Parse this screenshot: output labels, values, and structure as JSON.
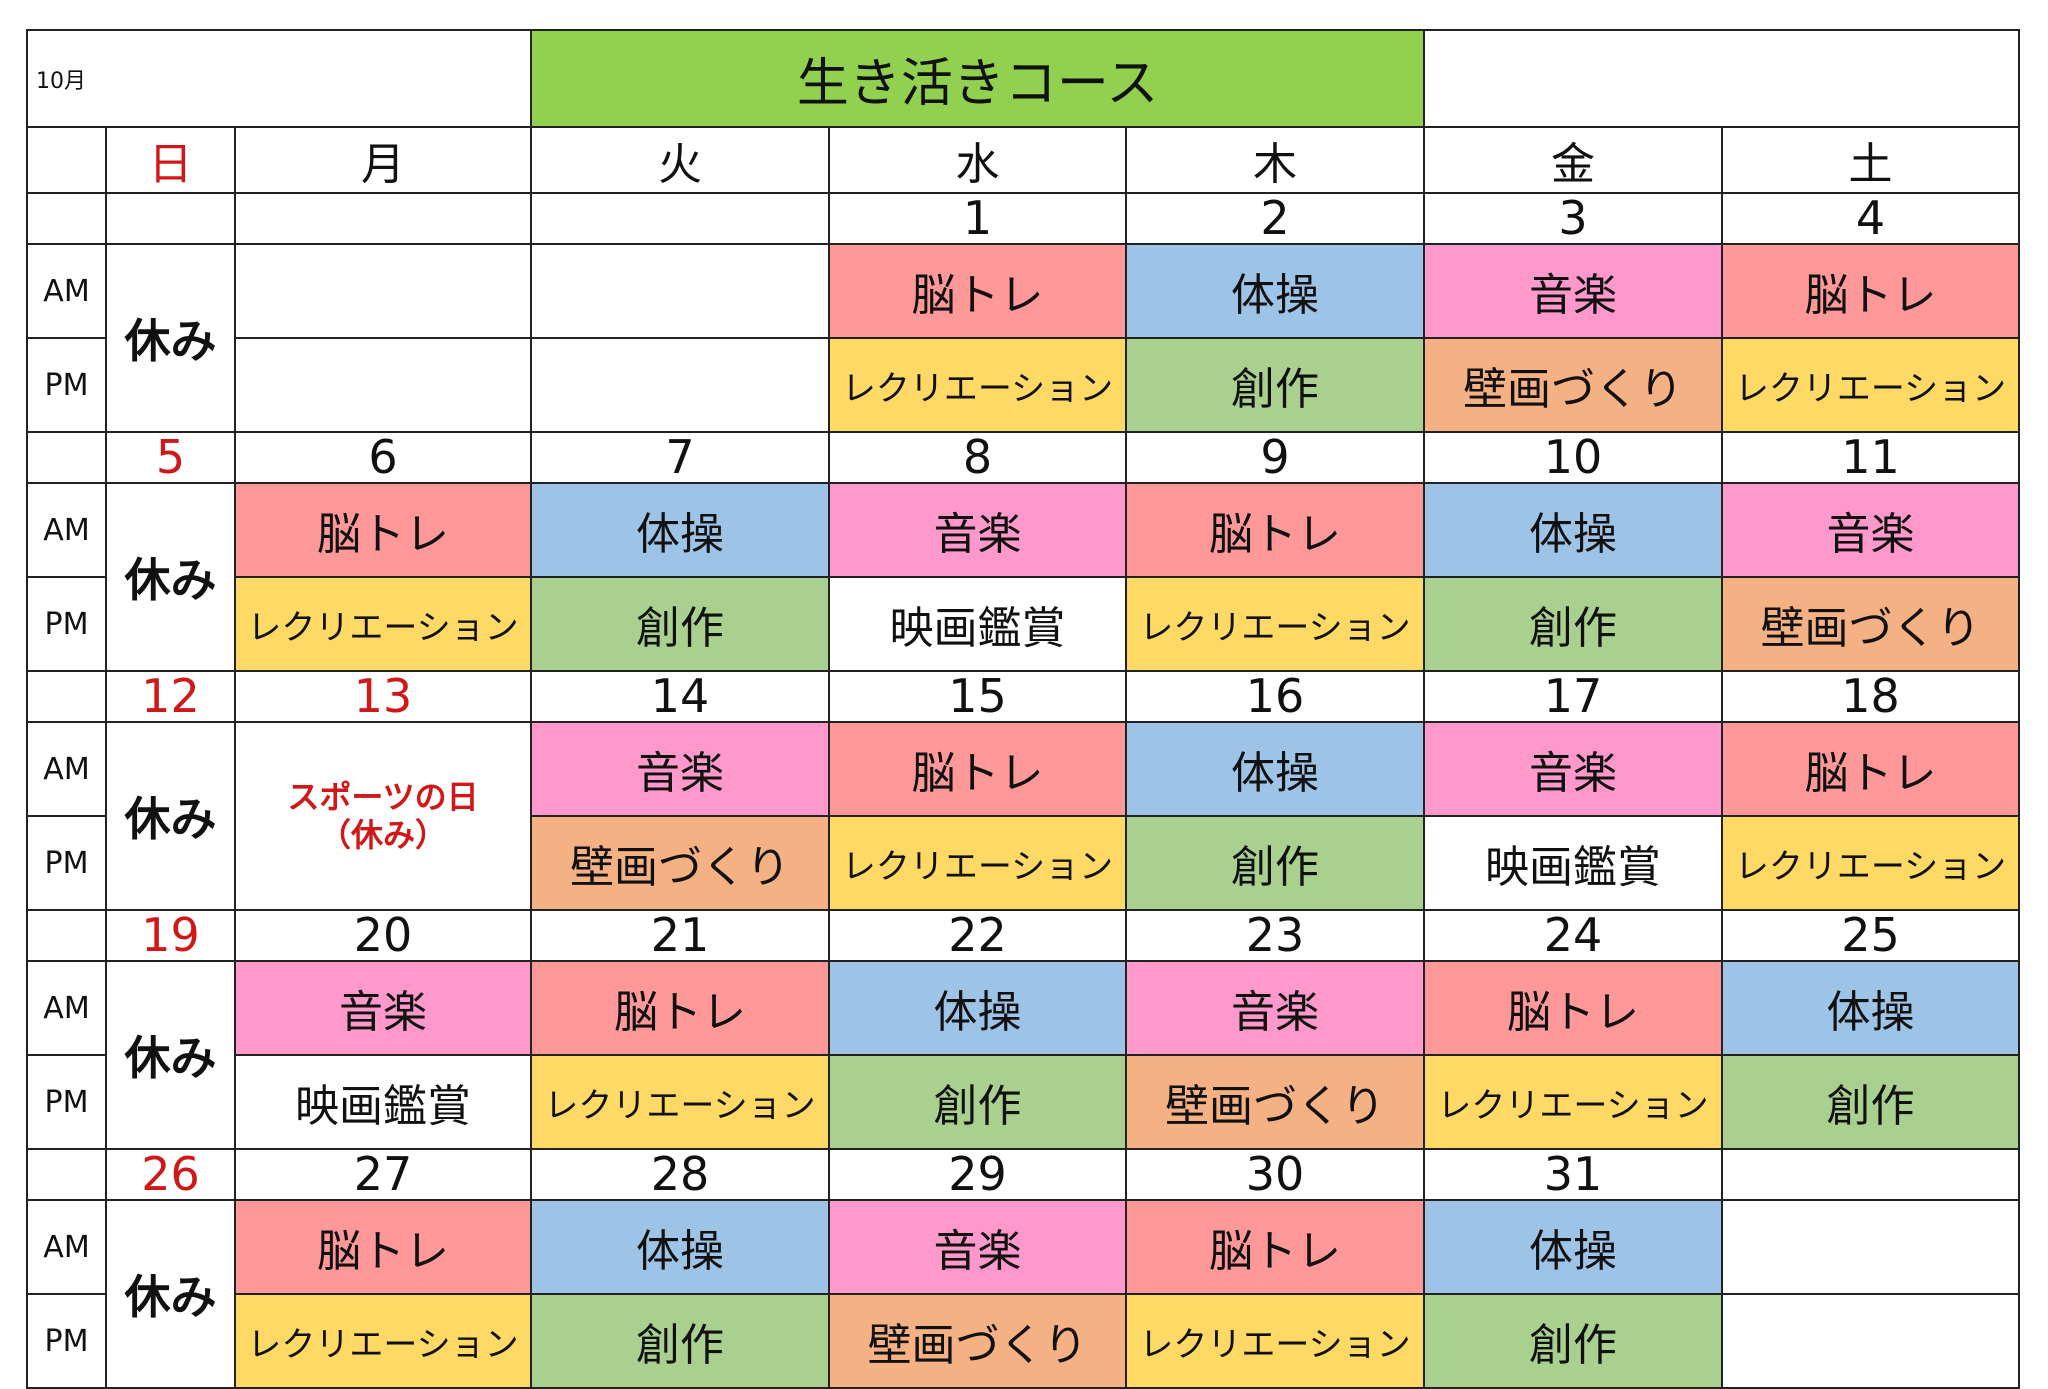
{
  "month_label": "10月",
  "title": "生き活きコース",
  "title_color": "#92D050",
  "weekdays": [
    "日",
    "月",
    "火",
    "水",
    "木",
    "金",
    "土"
  ],
  "session_labels": {
    "am": "AM",
    "pm": "PM"
  },
  "sunday_rest": "休み",
  "activity_colors": {
    "脳トレ": "#FF9999",
    "体操": "#9DC3E6",
    "音楽": "#FF99CC",
    "レクリエーション": "#FFD966",
    "創作": "#A9D08E",
    "壁画づくり": "#F4B183",
    "映画鑑賞": "#FFFFFF"
  },
  "weeks": [
    {
      "days": [
        {
          "date": ""
        },
        {
          "date": "",
          "am": "",
          "pm": ""
        },
        {
          "date": "",
          "am": "",
          "pm": ""
        },
        {
          "date": "1",
          "am": "脳トレ",
          "pm": "レクリエーション"
        },
        {
          "date": "2",
          "am": "体操",
          "pm": "創作"
        },
        {
          "date": "3",
          "am": "音楽",
          "pm": "壁画づくり"
        },
        {
          "date": "4",
          "am": "脳トレ",
          "pm": "レクリエーション"
        }
      ]
    },
    {
      "days": [
        {
          "date": "5"
        },
        {
          "date": "6",
          "am": "脳トレ",
          "pm": "レクリエーション"
        },
        {
          "date": "7",
          "am": "体操",
          "pm": "創作"
        },
        {
          "date": "8",
          "am": "音楽",
          "pm": "映画鑑賞"
        },
        {
          "date": "9",
          "am": "脳トレ",
          "pm": "レクリエーション"
        },
        {
          "date": "10",
          "am": "体操",
          "pm": "創作"
        },
        {
          "date": "11",
          "am": "音楽",
          "pm": "壁画づくり"
        }
      ]
    },
    {
      "days": [
        {
          "date": "12"
        },
        {
          "date": "13",
          "holiday": true,
          "holiday_name": "スポーツの日",
          "holiday_note": "（休み）"
        },
        {
          "date": "14",
          "am": "音楽",
          "pm": "壁画づくり"
        },
        {
          "date": "15",
          "am": "脳トレ",
          "pm": "レクリエーション"
        },
        {
          "date": "16",
          "am": "体操",
          "pm": "創作"
        },
        {
          "date": "17",
          "am": "音楽",
          "pm": "映画鑑賞"
        },
        {
          "date": "18",
          "am": "脳トレ",
          "pm": "レクリエーション"
        }
      ]
    },
    {
      "days": [
        {
          "date": "19"
        },
        {
          "date": "20",
          "am": "音楽",
          "pm": "映画鑑賞"
        },
        {
          "date": "21",
          "am": "脳トレ",
          "pm": "レクリエーション"
        },
        {
          "date": "22",
          "am": "体操",
          "pm": "創作"
        },
        {
          "date": "23",
          "am": "音楽",
          "pm": "壁画づくり"
        },
        {
          "date": "24",
          "am": "脳トレ",
          "pm": "レクリエーション"
        },
        {
          "date": "25",
          "am": "体操",
          "pm": "創作"
        }
      ]
    },
    {
      "days": [
        {
          "date": "26"
        },
        {
          "date": "27",
          "am": "脳トレ",
          "pm": "レクリエーション"
        },
        {
          "date": "28",
          "am": "体操",
          "pm": "創作"
        },
        {
          "date": "29",
          "am": "音楽",
          "pm": "壁画づくり"
        },
        {
          "date": "30",
          "am": "脳トレ",
          "pm": "レクリエーション"
        },
        {
          "date": "31",
          "am": "体操",
          "pm": "創作"
        },
        {
          "date": "",
          "am": "",
          "pm": ""
        }
      ]
    }
  ]
}
